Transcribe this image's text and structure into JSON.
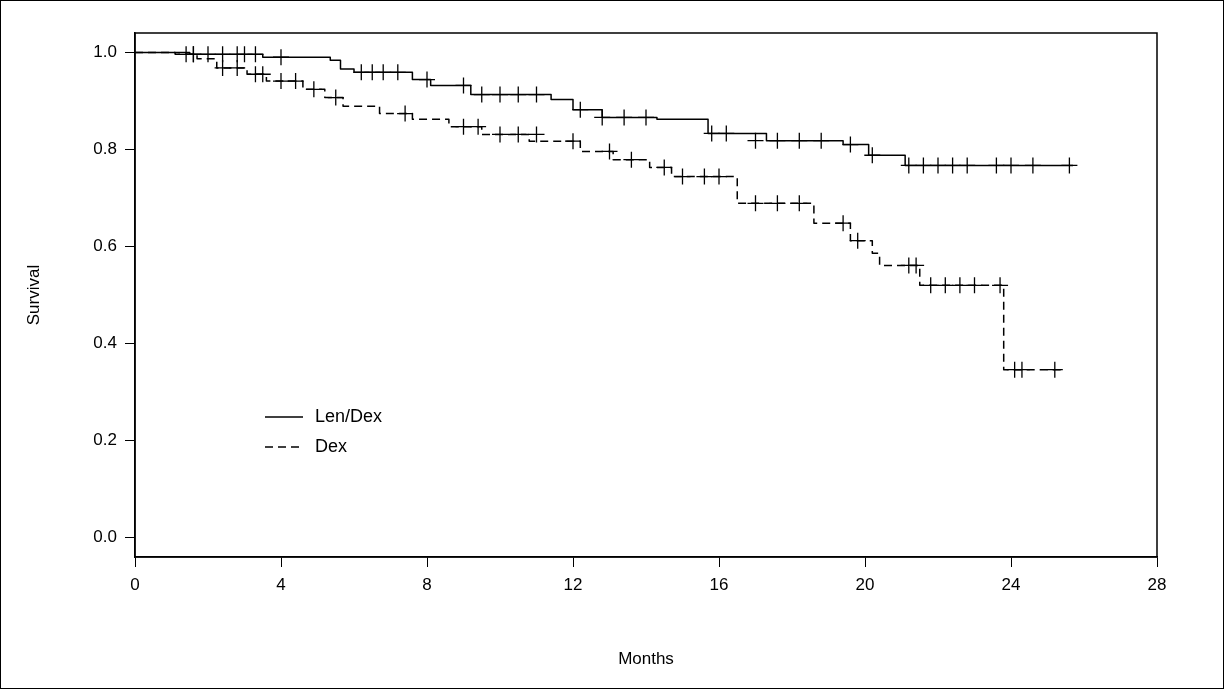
{
  "chart_data": {
    "type": "step",
    "xlabel": "Months",
    "ylabel": "Survival",
    "xlim": [
      0,
      28
    ],
    "xticks": [
      0,
      4,
      8,
      12,
      16,
      20,
      24,
      28
    ],
    "ylim": [
      -0.04,
      1.04
    ],
    "yticks": [
      {
        "value": 0,
        "label": "0.0"
      },
      {
        "value": 0.2,
        "label": "0.2"
      },
      {
        "value": 0.4,
        "label": "0.4"
      },
      {
        "value": 0.6,
        "label": "0.6"
      },
      {
        "value": 0.8,
        "label": "0.8"
      },
      {
        "value": 1,
        "label": "1.0"
      }
    ],
    "grid": false,
    "legend": "bottom left",
    "series": [
      {
        "name": "Len/Dex",
        "color": "#000000",
        "line_style": "solid",
        "x": [
          0,
          0.5,
          1.5,
          3.5,
          5.35,
          5.63,
          6.0,
          7.6,
          8.1,
          9.2,
          11.4,
          12.0,
          12.8,
          14.3,
          15.7,
          17.3,
          19.4,
          20.1,
          21.1,
          25.7
        ],
        "values": [
          1.0,
          1.0,
          0.996,
          0.99,
          0.984,
          0.966,
          0.959,
          0.944,
          0.932,
          0.913,
          0.903,
          0.882,
          0.866,
          0.862,
          0.833,
          0.818,
          0.81,
          0.788,
          0.767,
          0.767
        ]
      },
      {
        "name": "Dex",
        "color": "#000000",
        "line_style": "dashed",
        "x": [
          0,
          1.1,
          1.7,
          2.24,
          3.07,
          3.6,
          4.6,
          5.2,
          5.7,
          6.7,
          7.6,
          8.6,
          9.5,
          10.8,
          12.2,
          13.1,
          14.1,
          14.7,
          16.5,
          18.6,
          19.6,
          20.2,
          20.4,
          21.5,
          23.8,
          25.4
        ],
        "values": [
          1.0,
          0.996,
          0.987,
          0.968,
          0.955,
          0.941,
          0.924,
          0.907,
          0.889,
          0.874,
          0.862,
          0.847,
          0.831,
          0.817,
          0.796,
          0.779,
          0.763,
          0.744,
          0.689,
          0.648,
          0.612,
          0.586,
          0.561,
          0.52,
          0.346,
          0.346
        ]
      },
      {
        "type": "scatter",
        "marker": "cross",
        "color": "#000000",
        "x": [
          1.6,
          2.0,
          2.4,
          2.8,
          3.0,
          3.3,
          4.0,
          6.2,
          6.5,
          6.8,
          7.2,
          8.0,
          9.0,
          9.5,
          10.0,
          10.5,
          11.0,
          12.2,
          12.8,
          13.4,
          14.0,
          15.8,
          16.2,
          17.0,
          17.6,
          18.2,
          18.8,
          19.6,
          20.2,
          21.2,
          21.6,
          22.0,
          22.4,
          22.8,
          23.6,
          24.0,
          24.6,
          25.6
        ],
        "values": [
          0.996,
          0.996,
          0.996,
          0.996,
          0.996,
          0.996,
          0.99,
          0.959,
          0.959,
          0.959,
          0.959,
          0.944,
          0.932,
          0.913,
          0.913,
          0.913,
          0.913,
          0.882,
          0.866,
          0.866,
          0.866,
          0.833,
          0.833,
          0.818,
          0.818,
          0.818,
          0.818,
          0.81,
          0.788,
          0.767,
          0.767,
          0.767,
          0.767,
          0.767,
          0.767,
          0.767,
          0.767,
          0.767
        ]
      },
      {
        "type": "scatter",
        "marker": "cross",
        "color": "#000000",
        "x": [
          1.4,
          1.6,
          2.4,
          2.8,
          3.3,
          3.5,
          4.0,
          4.4,
          4.9,
          5.5,
          7.4,
          9.0,
          9.4,
          10.0,
          10.5,
          11.0,
          12.0,
          13.0,
          13.6,
          14.5,
          15.0,
          15.6,
          16.0,
          17.0,
          17.6,
          18.2,
          19.4,
          19.8,
          21.2,
          21.4,
          21.8,
          22.2,
          22.6,
          23.0,
          23.7,
          24.1,
          24.3,
          25.2
        ],
        "values": [
          0.996,
          0.996,
          0.968,
          0.968,
          0.955,
          0.955,
          0.941,
          0.941,
          0.924,
          0.907,
          0.874,
          0.847,
          0.847,
          0.831,
          0.831,
          0.831,
          0.817,
          0.796,
          0.779,
          0.763,
          0.744,
          0.744,
          0.744,
          0.689,
          0.689,
          0.689,
          0.648,
          0.612,
          0.561,
          0.561,
          0.52,
          0.52,
          0.52,
          0.52,
          0.52,
          0.346,
          0.346,
          0.346
        ]
      }
    ]
  }
}
